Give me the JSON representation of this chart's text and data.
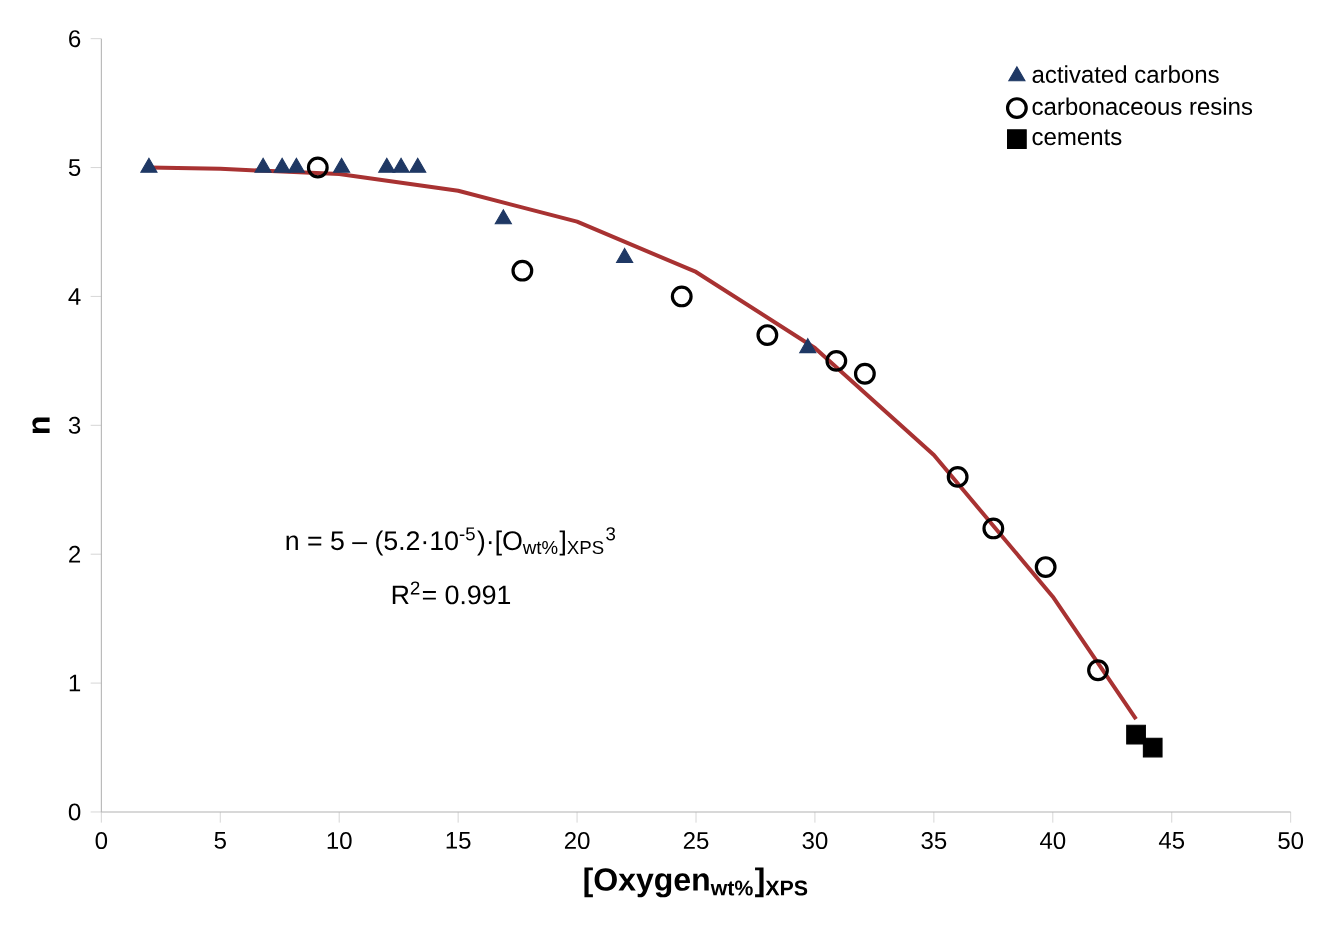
{
  "chart_data": {
    "type": "scatter",
    "xlabel": "**[Oxygen$_{wt%}$]$_{XPS}$**",
    "ylabel": "**n**",
    "xlim": [
      0,
      50
    ],
    "ylim": [
      0,
      6
    ],
    "xticks": [
      0,
      5,
      10,
      15,
      20,
      25,
      30,
      35,
      40,
      45,
      50
    ],
    "yticks": [
      0,
      1,
      2,
      3,
      4,
      5,
      6
    ],
    "grid": false,
    "legend": "top right",
    "annotations": [
      "n = 5 – (5.2·10$^{-5}$)·[O$_{wt%}$]$_{XPS}$$^{3}$",
      "R$^{2}$= 0.991"
    ],
    "series": [
      {
        "type": "line",
        "color": "#a83232",
        "marker": "none",
        "line_style": "solid",
        "x": [
          2,
          5,
          10,
          15,
          20,
          25,
          30,
          35,
          40,
          43.5
        ],
        "values": [
          5.0,
          4.99,
          4.95,
          4.82,
          4.58,
          4.19,
          3.6,
          2.77,
          1.67,
          0.72
        ]
      },
      {
        "name": "activated carbons",
        "color": "#1f3864",
        "marker": "triangle",
        "x": [
          2,
          6.8,
          7.6,
          8.2,
          10.1,
          12,
          12.6,
          13.3,
          16.9,
          22,
          29.7
        ],
        "values": [
          5,
          5,
          5,
          5,
          5,
          5,
          5,
          5,
          4.6,
          4.3,
          3.6
        ]
      },
      {
        "name": "carbonaceous resins",
        "color": "#000000",
        "marker": "circle",
        "x": [
          9.1,
          17.7,
          24.4,
          28,
          30.9,
          32.1,
          36,
          37.5,
          39.7,
          41.9
        ],
        "values": [
          5,
          4.2,
          4,
          3.7,
          3.5,
          3.4,
          2.6,
          2.2,
          1.9,
          1.1
        ]
      },
      {
        "name": "cements",
        "color": "#000000",
        "marker": "square",
        "x": [
          43.5,
          44.2
        ],
        "values": [
          0.6,
          0.5
        ]
      }
    ]
  }
}
